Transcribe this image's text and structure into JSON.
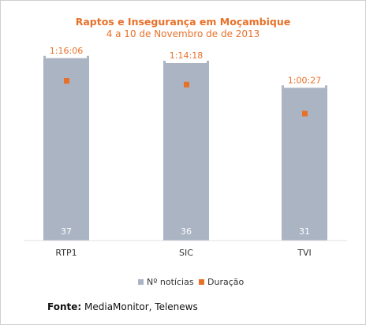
{
  "chart_data": {
    "type": "bar",
    "title": "Raptos e Insegurança em Moçambique",
    "subtitle": "4 a 10 de Novembro de de 2013",
    "categories": [
      "RTP1",
      "SIC",
      "TVI"
    ],
    "series": [
      {
        "name": "Nº notícias",
        "values": [
          37,
          36,
          31
        ],
        "color": "#aab4c3",
        "marker": "bar"
      },
      {
        "name": "Duração",
        "values": [
          "1:16:06",
          "1:14:18",
          "1:00:27"
        ],
        "color": "#e8712a",
        "marker": "square"
      }
    ],
    "ylim": [
      0,
      40
    ],
    "grid": false,
    "legend": "bottom"
  },
  "source": {
    "label": "Fonte:",
    "text": "MediaMonitor, Telenews"
  }
}
